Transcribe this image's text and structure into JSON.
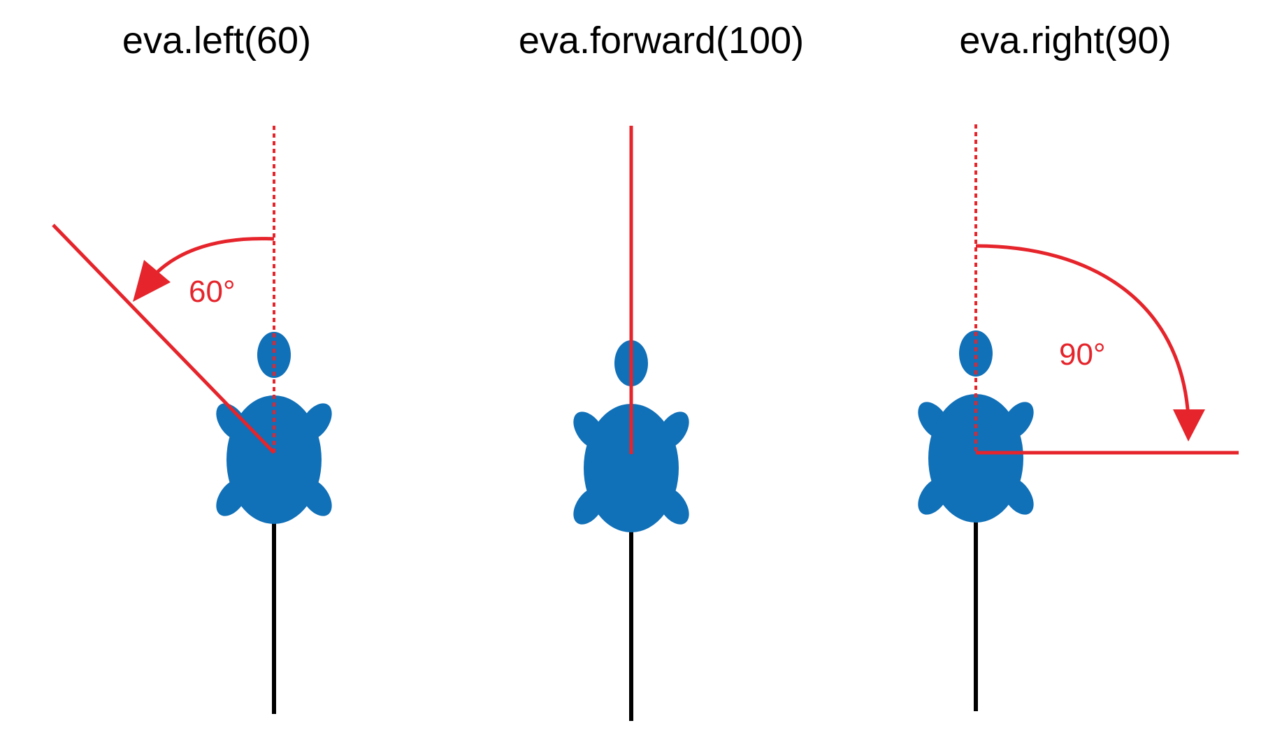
{
  "colors": {
    "turtle": "#1070b8",
    "highlight": "#e5242b",
    "trail": "#000000",
    "background": "#ffffff"
  },
  "panels": [
    {
      "title": "eva.left(60)",
      "angle_label": "60°",
      "command": "left",
      "angle_deg": 60
    },
    {
      "title": "eva.forward(100)",
      "command": "forward",
      "distance": 100
    },
    {
      "title": "eva.right(90)",
      "angle_label": "90°",
      "command": "right",
      "angle_deg": 90
    }
  ],
  "icons": {
    "turtle": "turtle-icon",
    "arrow": "curved-arrow-icon"
  }
}
